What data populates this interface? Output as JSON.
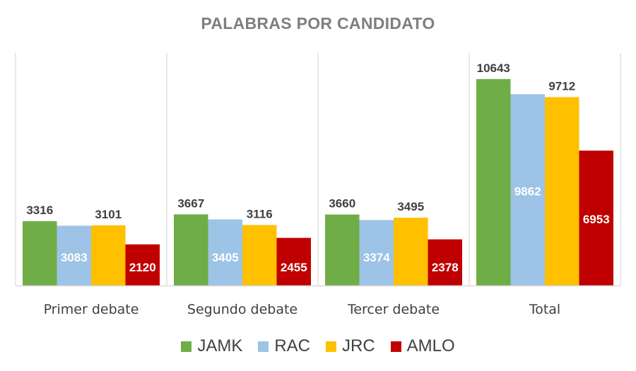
{
  "chart_data": {
    "type": "bar",
    "title": "PALABRAS POR CANDIDATO",
    "categories": [
      "Primer debate",
      "Segundo debate",
      "Tercer debate",
      "Total"
    ],
    "series": [
      {
        "name": "JAMK",
        "color": "#70ad47",
        "values": [
          3316,
          3667,
          3660,
          10643
        ]
      },
      {
        "name": "RAC",
        "color": "#9dc3e6",
        "values": [
          3083,
          3405,
          3374,
          9862
        ]
      },
      {
        "name": "JRC",
        "color": "#ffc000",
        "values": [
          3101,
          3116,
          3495,
          9712
        ]
      },
      {
        "name": "AMLO",
        "color": "#c00000",
        "values": [
          2120,
          2455,
          2378,
          6953
        ]
      }
    ],
    "ylim": [
      0,
      11000
    ],
    "grid": false,
    "legend_position": "bottom",
    "label_colors": {
      "outside": "#404040",
      "inside": "#ffffff"
    }
  }
}
